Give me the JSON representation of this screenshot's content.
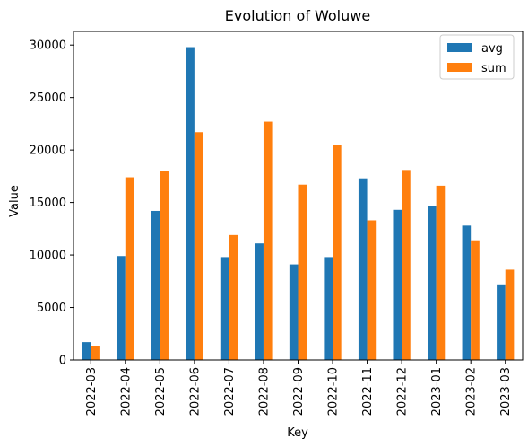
{
  "chart_data": {
    "type": "bar",
    "title": "Evolution of Woluwe",
    "xlabel": "Key",
    "ylabel": "Value",
    "categories": [
      "2022-03",
      "2022-04",
      "2022-05",
      "2022-06",
      "2022-07",
      "2022-08",
      "2022-09",
      "2022-10",
      "2022-11",
      "2022-12",
      "2023-01",
      "2023-02",
      "2023-03"
    ],
    "series": [
      {
        "name": "avg",
        "color": "#1f77b4",
        "values": [
          1700,
          9900,
          14200,
          29800,
          9800,
          11100,
          9100,
          9800,
          17300,
          14300,
          14700,
          12800,
          7200
        ]
      },
      {
        "name": "sum",
        "color": "#ff7f0e",
        "values": [
          1300,
          17400,
          18000,
          21700,
          11900,
          22700,
          16700,
          20500,
          13300,
          18100,
          16600,
          11400,
          8600
        ]
      }
    ],
    "ylim": [
      0,
      31300
    ],
    "yticks": [
      0,
      5000,
      10000,
      15000,
      20000,
      25000,
      30000
    ],
    "grid": false,
    "legend": "top-right"
  }
}
